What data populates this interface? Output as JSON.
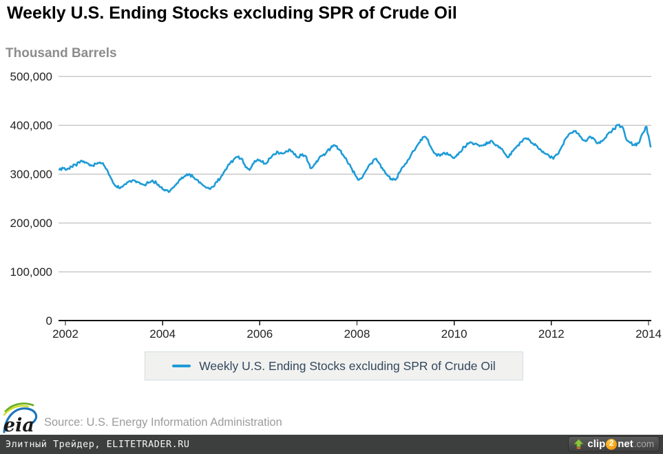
{
  "header": {
    "title": "Weekly U.S. Ending Stocks excluding SPR of Crude Oil",
    "units_label": "Thousand Barrels"
  },
  "chart_data": {
    "type": "line",
    "title": "Weekly U.S. Ending Stocks excluding SPR of Crude Oil",
    "ylabel": "Thousand Barrels",
    "xlabel": "",
    "grid": "horizontal",
    "legend_position": "bottom",
    "ylim": [
      0,
      500000
    ],
    "xlim": [
      2001.85,
      2014.06
    ],
    "x_ticks": [
      {
        "value": 2002,
        "label": "2002"
      },
      {
        "value": 2004,
        "label": "2004"
      },
      {
        "value": 2006,
        "label": "2006"
      },
      {
        "value": 2008,
        "label": "2008"
      },
      {
        "value": 2010,
        "label": "2010"
      },
      {
        "value": 2012,
        "label": "2012"
      },
      {
        "value": 2014,
        "label": "2014"
      }
    ],
    "y_ticks": [
      {
        "value": 0,
        "label": "0"
      },
      {
        "value": 100000,
        "label": "100,000"
      },
      {
        "value": 200000,
        "label": "200,000"
      },
      {
        "value": 300000,
        "label": "300,000"
      },
      {
        "value": 400000,
        "label": "400,000"
      },
      {
        "value": 500000,
        "label": "500,000"
      }
    ],
    "series": [
      {
        "name": "Weekly U.S. Ending Stocks excluding SPR of Crude Oil",
        "color": "#1e9bd7",
        "x_start_year": 2001.875,
        "x_step_years": 0.083333,
        "values": [
          309000,
          312000,
          311000,
          315000,
          319000,
          323000,
          326000,
          322000,
          317000,
          321000,
          324000,
          318000,
          305000,
          288000,
          275000,
          271000,
          278000,
          284000,
          287000,
          283000,
          280000,
          278000,
          282000,
          287000,
          281000,
          273000,
          266000,
          263000,
          272000,
          281000,
          289000,
          296000,
          300000,
          294000,
          288000,
          281000,
          274000,
          270000,
          274000,
          284000,
          296000,
          309000,
          320000,
          329000,
          335000,
          332000,
          314000,
          308000,
          322000,
          330000,
          325000,
          321000,
          332000,
          341000,
          345000,
          342000,
          347000,
          350000,
          340000,
          334000,
          341000,
          335000,
          312000,
          320000,
          330000,
          338000,
          345000,
          353000,
          359000,
          351000,
          340000,
          328000,
          314000,
          299000,
          288000,
          296000,
          310000,
          322000,
          331000,
          322000,
          308000,
          297000,
          290000,
          288000,
          303000,
          315000,
          328000,
          342000,
          353000,
          365000,
          376000,
          371000,
          351000,
          341000,
          337000,
          344000,
          340000,
          335000,
          336000,
          345000,
          356000,
          362000,
          364000,
          362000,
          358000,
          361000,
          365000,
          366000,
          359000,
          352000,
          342000,
          335000,
          347000,
          357000,
          366000,
          373000,
          370000,
          362000,
          357000,
          348000,
          342000,
          336000,
          331000,
          340000,
          355000,
          372000,
          383000,
          388000,
          383000,
          373000,
          367000,
          377000,
          372000,
          363000,
          367000,
          375000,
          386000,
          392000,
          400000,
          397000,
          371000,
          364000,
          359000,
          363000,
          383000,
          397000,
          356000
        ]
      }
    ]
  },
  "legend": {
    "label": "Weekly U.S. Ending Stocks excluding SPR of Crude Oil",
    "swatch_color": "#1e9bd7"
  },
  "footer": {
    "logo_text": "eia",
    "source": "Source: U.S. Energy Information Administration"
  },
  "banner": {
    "text": "Элитный Трейдер, ELITETRADER.RU",
    "background": "#3d3f3f"
  },
  "watermark": {
    "clip": "clip",
    "two": "2",
    "net": "net",
    "com": ".com"
  },
  "colors": {
    "line": "#1e9bd7",
    "gridline": "#c9c9c9",
    "axis": "#111111",
    "tick_label": "#222222",
    "title": "#000000",
    "subtitle": "#8c8c8c"
  }
}
